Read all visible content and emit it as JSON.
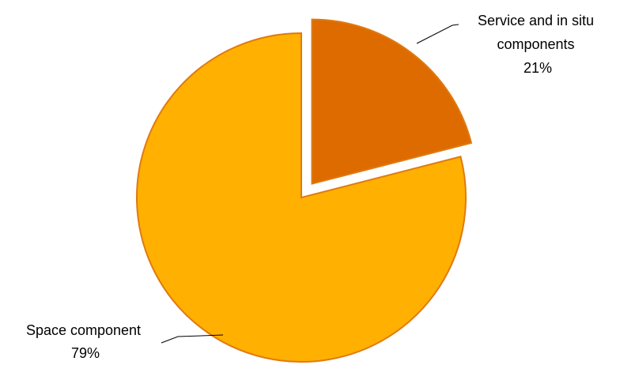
{
  "chart_data": {
    "type": "pie",
    "title": "",
    "slices": [
      {
        "name": "Service and in situ components",
        "label_lines": [
          "Service and in situ",
          "components"
        ],
        "percent_label": "21%",
        "value": 21,
        "color": "#DD6B00",
        "exploded": true
      },
      {
        "name": "Space component",
        "label_lines": [
          "Space component"
        ],
        "percent_label": "79%",
        "value": 79,
        "color": "#FFB000",
        "exploded": false
      }
    ],
    "start_angle": "top, clockwise",
    "border_color": "#E07A10",
    "legend": "none (labels on slices)"
  }
}
